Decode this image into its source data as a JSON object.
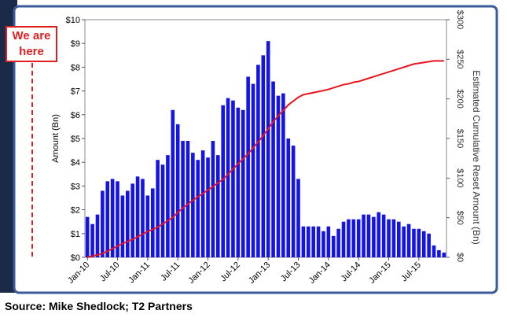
{
  "chart_data": {
    "type": "bar",
    "categories": [
      "Jan-10",
      null,
      null,
      null,
      null,
      null,
      "Jul-10",
      null,
      null,
      null,
      null,
      null,
      "Jan-11",
      null,
      null,
      null,
      null,
      null,
      "Jul-11",
      null,
      null,
      null,
      null,
      null,
      "Jan-12",
      null,
      null,
      null,
      null,
      null,
      "Jul-12",
      null,
      null,
      null,
      null,
      null,
      "Jan-13",
      null,
      null,
      null,
      null,
      null,
      "Jul-13",
      null,
      null,
      null,
      null,
      null,
      "Jan-14",
      null,
      null,
      null,
      null,
      null,
      "Jul-14",
      null,
      null,
      null,
      null,
      null,
      "Jan-15",
      null,
      null,
      null,
      null,
      null,
      "Jul-15",
      null,
      null,
      null,
      null,
      null
    ],
    "series": [
      {
        "color": "#1414e6",
        "values": [
          1.7,
          1.4,
          1.8,
          2.8,
          3.2,
          3.3,
          3.2,
          2.6,
          2.8,
          3.1,
          3.4,
          3.3,
          2.6,
          2.9,
          4.1,
          3.9,
          4.3,
          6.2,
          5.6,
          4.9,
          4.9,
          4.4,
          4.1,
          4.5,
          4.2,
          4.9,
          4.3,
          6.4,
          6.7,
          6.6,
          6.3,
          6.2,
          7.6,
          7.3,
          8.1,
          8.5,
          9.1,
          7.4,
          6.8,
          6.9,
          5.0,
          4.7,
          3.3,
          1.3,
          1.3,
          1.3,
          1.3,
          1.1,
          1.3,
          0.9,
          1.2,
          1.5,
          1.6,
          1.6,
          1.6,
          1.8,
          1.8,
          1.7,
          1.9,
          1.8,
          1.6,
          1.6,
          1.5,
          1.3,
          1.4,
          1.2,
          1.2,
          1.1,
          1.0,
          0.5,
          0.3,
          0.2
        ]
      },
      {
        "color": "#e8141e",
        "axis": "y2",
        "type": "line",
        "values": [
          0,
          1.7,
          3.1,
          4.9,
          7.7,
          10.9,
          14.2,
          17.4,
          20.0,
          22.8,
          25.9,
          29.3,
          32.6,
          35.2,
          38.1,
          42.2,
          46.1,
          50.4,
          56.6,
          62.2,
          67.1,
          72.0,
          76.4,
          80.5,
          85.0,
          89.2,
          94.1,
          98.4,
          104.8,
          111.5,
          118.1,
          124.4,
          130.6,
          138.2,
          145.5,
          153.6,
          162.1,
          171.2,
          178.6,
          185.4,
          192.3,
          197.3,
          202.0,
          205.3,
          206.6,
          207.9,
          209.2,
          210.5,
          212,
          214,
          216,
          218,
          219,
          221,
          222,
          224,
          226,
          228,
          230,
          232,
          234,
          236,
          238,
          240,
          242,
          244,
          245,
          246,
          247,
          248,
          248,
          248
        ]
      }
    ],
    "ylabel": "Amount (Bn)",
    "y2label": "Estimated Cumulative Reset Amount (Bn)",
    "ylim": [
      0,
      10
    ],
    "yticks": [
      {
        "value": 0,
        "label": "$0"
      },
      {
        "value": 1,
        "label": "$1"
      },
      {
        "value": 2,
        "label": "$2"
      },
      {
        "value": 3,
        "label": "$3"
      },
      {
        "value": 4,
        "label": "$4"
      },
      {
        "value": 5,
        "label": "$5"
      },
      {
        "value": 6,
        "label": "$6"
      },
      {
        "value": 7,
        "label": "$7"
      },
      {
        "value": 8,
        "label": "$8"
      },
      {
        "value": 9,
        "label": "$9"
      },
      {
        "value": 10,
        "label": "$10"
      }
    ],
    "y2lim": [
      0,
      300
    ],
    "y2ticks": [
      {
        "value": 0,
        "label": "$0"
      },
      {
        "value": 50,
        "label": "$50"
      },
      {
        "value": 100,
        "label": "$100"
      },
      {
        "value": 150,
        "label": "$150"
      },
      {
        "value": 200,
        "label": "$200"
      },
      {
        "value": 250,
        "label": "$250"
      },
      {
        "value": 300,
        "label": "$300"
      }
    ],
    "annotation_lines": [
      "We are",
      "here"
    ],
    "source": "Source: Mike Shedlock; T2 Partners"
  }
}
